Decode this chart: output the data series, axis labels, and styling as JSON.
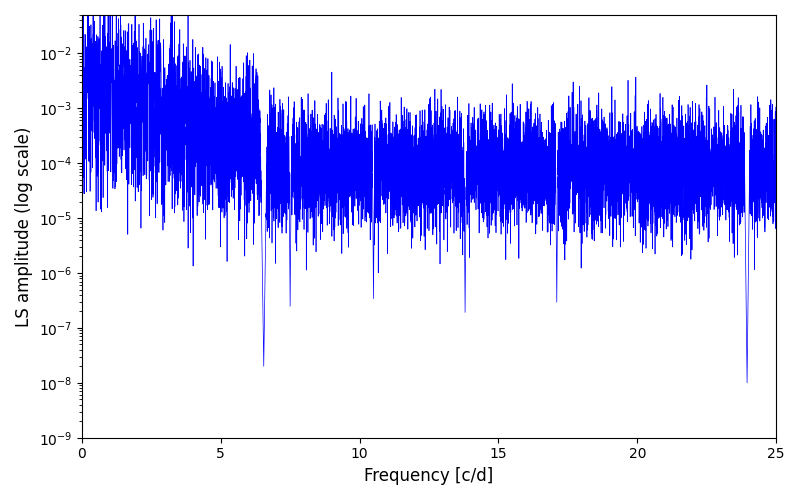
{
  "title": "",
  "xlabel": "Frequency [c/d]",
  "ylabel": "LS amplitude (log scale)",
  "xlim": [
    0,
    25
  ],
  "ylim_low": 1e-09,
  "ylim_high": 0.05,
  "line_color": "#0000ff",
  "line_width": 0.5,
  "freq_max": 25.0,
  "n_points": 10000,
  "seed": 12345,
  "background_color": "#ffffff",
  "figsize": [
    8.0,
    5.0
  ],
  "dpi": 100
}
